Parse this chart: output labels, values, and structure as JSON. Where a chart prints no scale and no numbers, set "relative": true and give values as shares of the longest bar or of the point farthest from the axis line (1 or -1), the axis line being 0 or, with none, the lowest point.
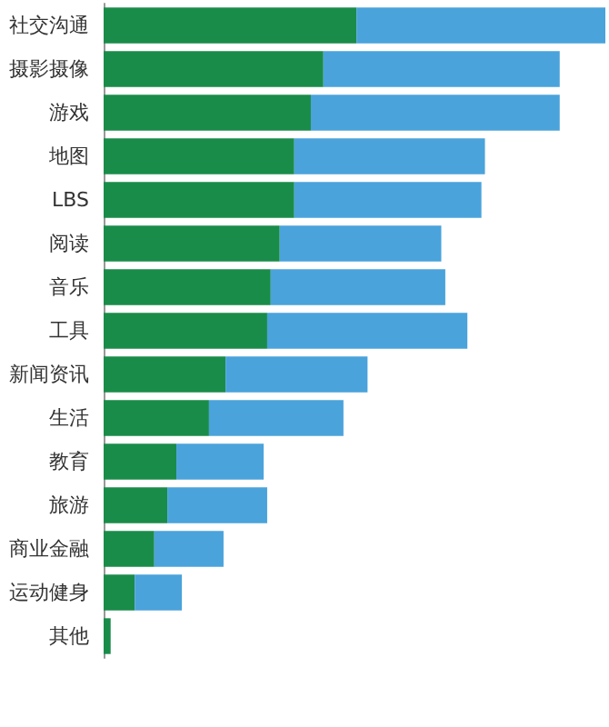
{
  "chart_data": {
    "type": "bar",
    "orientation": "horizontal",
    "stacked": true,
    "relative": true,
    "categories": [
      "社交沟通",
      "摄影摄像",
      "游戏",
      "地图",
      "LBS",
      "阅读",
      "音乐",
      "工具",
      "新闻资讯",
      "生活",
      "教育",
      "旅游",
      "商业金融",
      "运动健身",
      "其他"
    ],
    "series": [
      {
        "color": "#1a8c4a",
        "values": [
          0.504,
          0.438,
          0.413,
          0.38,
          0.38,
          0.351,
          0.333,
          0.326,
          0.243,
          0.21,
          0.145,
          0.127,
          0.101,
          0.062,
          0.014
        ]
      },
      {
        "color": "#4aa3db",
        "values": [
          0.496,
          0.471,
          0.496,
          0.38,
          0.373,
          0.322,
          0.348,
          0.399,
          0.283,
          0.268,
          0.174,
          0.199,
          0.138,
          0.094,
          0
        ]
      }
    ]
  }
}
